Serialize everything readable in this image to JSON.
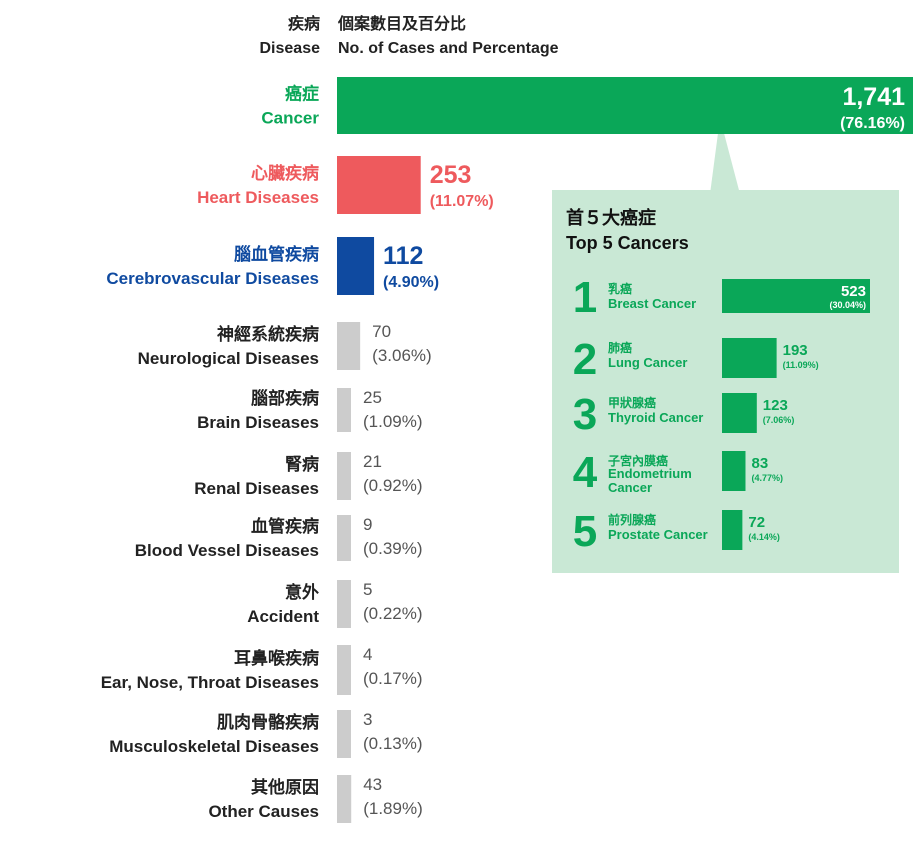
{
  "header": {
    "disease_zh": "疾病",
    "disease_en": "Disease",
    "cases_zh": "個案數目及百分比",
    "cases_en": "No. of Cases and Percentage"
  },
  "colors": {
    "cancer": "#0aa758",
    "heart": "#ee5a5d",
    "cerebro": "#0f4aa0",
    "other": "#cccccc",
    "inset_bg": "#c9e8d5",
    "inset_green": "#0aa758"
  },
  "inset": {
    "title_zh": "首５大癌症",
    "title_en": "Top 5 Cancers"
  },
  "chart_data": [
    {
      "type": "bar",
      "categories_zh": [
        "癌症",
        "心臟疾病",
        "腦血管疾病",
        "神經系統疾病",
        "腦部疾病",
        "腎病",
        "血管疾病",
        "意外",
        "耳鼻喉疾病",
        "肌肉骨骼疾病",
        "其他原因"
      ],
      "categories": [
        "Cancer",
        "Heart Diseases",
        "Cerebrovascular Diseases",
        "Neurological Diseases",
        "Brain Diseases",
        "Renal Diseases",
        "Blood Vessel Diseases",
        "Accident",
        "Ear, Nose, Throat Diseases",
        "Musculoskeletal Diseases",
        "Other Causes"
      ],
      "values": [
        1741,
        253,
        112,
        70,
        25,
        21,
        9,
        5,
        4,
        3,
        43
      ],
      "value_labels": [
        "1,741",
        "253",
        "112",
        "70",
        "25",
        "21",
        "9",
        "5",
        "4",
        "3",
        "43"
      ],
      "percent_labels": [
        "(76.16%)",
        "(11.07%)",
        "(4.90%)",
        "(3.06%)",
        "(1.09%)",
        "(0.92%)",
        "(0.39%)",
        "(0.22%)",
        "(0.17%)",
        "(0.13%)",
        "(1.89%)"
      ]
    },
    {
      "type": "bar",
      "ranks": [
        "1",
        "2",
        "3",
        "4",
        "5"
      ],
      "categories_zh": [
        "乳癌",
        "肺癌",
        "甲狀腺癌",
        "子宮內膜癌",
        "前列腺癌"
      ],
      "categories": [
        "Breast Cancer",
        "Lung Cancer",
        "Thyroid Cancer",
        "Endometrium Cancer",
        "Prostate Cancer"
      ],
      "values": [
        523,
        193,
        123,
        83,
        72
      ],
      "percent_labels": [
        "(30.04%)",
        "(11.09%)",
        "(7.06%)",
        "(4.77%)",
        "(4.14%)"
      ]
    }
  ]
}
